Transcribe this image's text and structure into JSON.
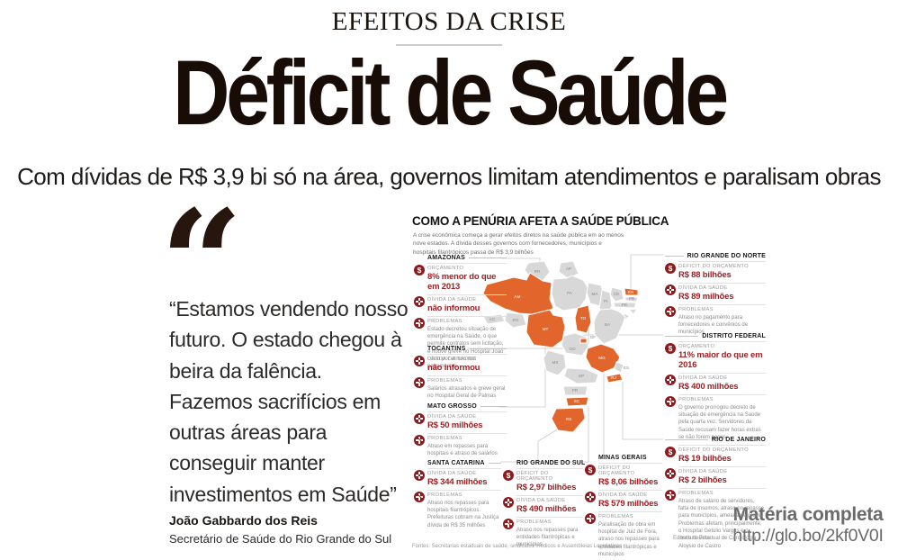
{
  "page": {
    "kicker": "EFEITOS DA CRISE",
    "headline": "Déficit de Saúde",
    "subheadline": "Com dívidas de R$ 3,9 bi só na área, governos limitam atendimentos e paralisam obras"
  },
  "quote": {
    "mark": "“",
    "text": "“Estamos vendendo nosso futuro. O estado chegou à beira da falência. Fazemos sacrifícios em outras áreas para conseguir manter investimentos em Saúde”",
    "author": "João Gabbardo dos Reis",
    "role": "Secretário de Saúde do Rio Grande do Sul"
  },
  "infographic": {
    "title": "COMO A PENÚRIA AFETA A SAÚDE PÚBLICA",
    "intro": "A crise econômica começa a gerar efeitos diretos na saúde pública em ao menos nove estados. A dívida desses governos com fornecedores, municípios e hospitais filantrópicos passa de R$ 3,9 bilhões",
    "sources": "Fontes: Secretarias estaduais de saúde, sindicatos médicos e Assembleias Legislativas",
    "credit": "Editoria de Arte",
    "colors": {
      "icon_red": "#8e1a1d",
      "value_red": "#9e2024",
      "highlight_orange": "#e2662b",
      "state_gray": "#d8d8d8"
    },
    "blocks": [
      {
        "id": "amazonas",
        "name": "AMAZONAS",
        "dash": "right",
        "rows": [
          {
            "icon": "dollar",
            "label": "ORÇAMENTO",
            "value": "8% menor do que em 2013"
          },
          {
            "icon": "debt",
            "label": "DÍVIDA DA SAÚDE",
            "value": "não informou"
          },
          {
            "icon": "problems",
            "label": "PROBLEMAS",
            "text": "Estado decretou situação de emergência na Saúde, o que permite contratos sem licitação, e houve greve no Hospital João Lúcio por atraso nos pagamentos"
          }
        ]
      },
      {
        "id": "tocantins",
        "name": "TOCANTINS",
        "dash": "right",
        "rows": [
          {
            "icon": "debt",
            "label": "DÍVIDA DA SAÚDE",
            "value": "não informou"
          },
          {
            "icon": "problems",
            "label": "PROBLEMAS",
            "text": "Salários atrasados e greve geral no Hospital Geral de Palmas"
          }
        ]
      },
      {
        "id": "mato-grosso",
        "name": "MATO GROSSO",
        "dash": "right",
        "rows": [
          {
            "icon": "debt",
            "label": "DÍVIDA DA SAÚDE",
            "value": "R$ 50 milhões"
          },
          {
            "icon": "problems",
            "label": "PROBLEMAS",
            "text": "Atraso em repasses para hospitais e atraso de salários"
          }
        ]
      },
      {
        "id": "santa-catarina",
        "name": "SANTA CATARINA",
        "dash": "right",
        "rows": [
          {
            "icon": "debt",
            "label": "DÍVIDA DA SAÚDE",
            "value": "R$ 344 milhões"
          },
          {
            "icon": "problems",
            "label": "PROBLEMAS",
            "text": "Atraso nos repasses para hospitais filantrópicos. Prefeituras cobram na Justiça dívida de R$ 35 milhões"
          }
        ]
      },
      {
        "id": "rio-grande-do-sul",
        "name": "RIO GRANDE DO SUL",
        "dash": "none",
        "rows": [
          {
            "icon": "dollar",
            "label": "DÉFICIT DO ORÇAMENTO",
            "value": "R$ 2,97 bilhões"
          },
          {
            "icon": "debt",
            "label": "DÍVIDA DA SAÚDE",
            "value": "R$ 490 milhões"
          },
          {
            "icon": "problems",
            "label": "PROBLEMAS",
            "text": "Atraso nos repasses para entidades filantrópicas e municípios"
          }
        ]
      },
      {
        "id": "minas-gerais",
        "name": "MINAS GERAIS",
        "dash": "none",
        "rows": [
          {
            "icon": "dollar",
            "label": "DÉFICIT DO ORÇAMENTO",
            "value": "R$ 8,06 bilhões"
          },
          {
            "icon": "debt",
            "label": "DÍVIDA DA SAÚDE",
            "value": "R$ 579 milhões"
          },
          {
            "icon": "problems",
            "label": "PROBLEMAS",
            "text": "Paralisação de obra em hospital de Juiz de Fora, atraso nos repasses para entidades filantrópicas e municípios"
          }
        ]
      },
      {
        "id": "rio-grande-do-norte",
        "name": "RIO GRANDE DO NORTE",
        "dash": "left",
        "rows": [
          {
            "icon": "dollar",
            "label": "DÉFICIT DO ORÇAMENTO",
            "value": "R$ 88 bilhões"
          },
          {
            "icon": "debt",
            "label": "DÍVIDA DA SAÚDE",
            "value": "R$ 89 milhões"
          },
          {
            "icon": "problems",
            "label": "PROBLEMAS",
            "text": "Atraso no pagamento para fornecedores e convênios de municípios"
          }
        ]
      },
      {
        "id": "distrito-federal",
        "name": "DISTRITO FEDERAL",
        "dash": "left",
        "rows": [
          {
            "icon": "dollar",
            "label": "ORÇAMENTO",
            "value": "11% maior do que em 2016"
          },
          {
            "icon": "debt",
            "label": "DÍVIDA DA SAÚDE",
            "value": "R$ 400 milhões"
          },
          {
            "icon": "problems",
            "label": "PROBLEMAS",
            "text": "O governo prorrogou decreto de situação de emergência na Saúde pela quarta vez. Servidores da Saúde recusam fazer horas extras se não forem pagos"
          }
        ]
      },
      {
        "id": "rio-de-janeiro",
        "name": "RIO DE JANEIRO",
        "dash": "left",
        "rows": [
          {
            "icon": "dollar",
            "label": "DÉFICIT DO ORÇAMENTO",
            "value": "R$ 19 bilhões"
          },
          {
            "icon": "debt",
            "label": "DÍVIDA DA SAÚDE",
            "value": "R$ 2 bilhões"
          },
          {
            "icon": "problems",
            "label": "PROBLEMAS",
            "text": "Atraso de salário de servidores, falta de insumos, atraso no repasse para municípios, ameaça de greve. Problemas afetam, principalmente, o Hospital Getúlio Vargas e o Instituto Estadual de Cardiologia Aloysio de Castro"
          }
        ]
      }
    ]
  },
  "map": {
    "title": "Mapa do Brasil — estados afetados em destaque",
    "states": [
      {
        "code": "RR",
        "highlighted": false
      },
      {
        "code": "AP",
        "highlighted": false
      },
      {
        "code": "AM",
        "highlighted": true
      },
      {
        "code": "PA",
        "highlighted": false
      },
      {
        "code": "MA",
        "highlighted": false
      },
      {
        "code": "PI",
        "highlighted": false
      },
      {
        "code": "CE",
        "highlighted": false
      },
      {
        "code": "RN",
        "highlighted": true
      },
      {
        "code": "PB",
        "highlighted": false
      },
      {
        "code": "PE",
        "highlighted": false
      },
      {
        "code": "AL",
        "highlighted": false
      },
      {
        "code": "SE",
        "highlighted": false
      },
      {
        "code": "BA",
        "highlighted": false
      },
      {
        "code": "AC",
        "highlighted": false
      },
      {
        "code": "RO",
        "highlighted": false
      },
      {
        "code": "MT",
        "highlighted": true
      },
      {
        "code": "TO",
        "highlighted": true
      },
      {
        "code": "GO",
        "highlighted": false
      },
      {
        "code": "DF",
        "highlighted": true
      },
      {
        "code": "MS",
        "highlighted": false
      },
      {
        "code": "MG",
        "highlighted": true
      },
      {
        "code": "ES",
        "highlighted": false
      },
      {
        "code": "RJ",
        "highlighted": true
      },
      {
        "code": "SP",
        "highlighted": false
      },
      {
        "code": "PR",
        "highlighted": false
      },
      {
        "code": "SC",
        "highlighted": true
      },
      {
        "code": "RS",
        "highlighted": true
      }
    ]
  },
  "footer_link": {
    "label": "Matéria completa",
    "url": "http://glo.bo/2kf0V0I"
  }
}
